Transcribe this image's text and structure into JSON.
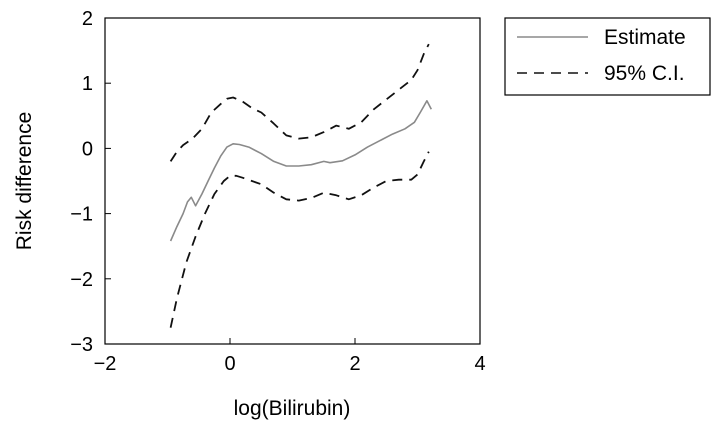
{
  "chart_data": {
    "type": "line",
    "xlabel": "log(Bilirubin)",
    "ylabel": "Risk difference",
    "xlim": [
      -2,
      4
    ],
    "ylim": [
      -3,
      2
    ],
    "xticks": [
      -2,
      0,
      2,
      4
    ],
    "yticks": [
      -3,
      -2,
      -1,
      0,
      1,
      2
    ],
    "xtick_labels": [
      "−2",
      "0",
      "2",
      "4"
    ],
    "ytick_labels": [
      "−3",
      "−2",
      "−1",
      "0",
      "1",
      "2"
    ],
    "grid": false,
    "legend_position": "outside-top-right",
    "series": [
      {
        "name": "Estimate",
        "style": "solid",
        "color": "#8a8a8a",
        "x": [
          -0.95,
          -0.85,
          -0.75,
          -0.68,
          -0.62,
          -0.55,
          -0.45,
          -0.35,
          -0.25,
          -0.15,
          -0.05,
          0.05,
          0.15,
          0.3,
          0.5,
          0.7,
          0.9,
          1.1,
          1.3,
          1.5,
          1.6,
          1.8,
          2.0,
          2.2,
          2.4,
          2.6,
          2.8,
          2.95,
          3.05,
          3.15,
          3.22
        ],
        "y": [
          -1.42,
          -1.2,
          -1.0,
          -0.82,
          -0.75,
          -0.88,
          -0.7,
          -0.5,
          -0.3,
          -0.12,
          0.02,
          0.07,
          0.06,
          0.02,
          -0.08,
          -0.2,
          -0.27,
          -0.27,
          -0.25,
          -0.2,
          -0.22,
          -0.19,
          -0.1,
          0.02,
          0.12,
          0.22,
          0.3,
          0.4,
          0.56,
          0.73,
          0.6
        ]
      },
      {
        "name": "95% C.I.",
        "style": "dashed",
        "color": "#111111",
        "x": [
          -0.95,
          -0.85,
          -0.75,
          -0.6,
          -0.45,
          -0.3,
          -0.15,
          -0.05,
          0.05,
          0.2,
          0.35,
          0.5,
          0.7,
          0.9,
          1.1,
          1.3,
          1.5,
          1.7,
          1.9,
          2.1,
          2.3,
          2.5,
          2.7,
          2.9,
          3.0,
          3.1,
          3.18
        ],
        "y": [
          -0.2,
          -0.05,
          0.05,
          0.15,
          0.3,
          0.55,
          0.68,
          0.76,
          0.78,
          0.72,
          0.62,
          0.55,
          0.38,
          0.2,
          0.15,
          0.17,
          0.25,
          0.35,
          0.3,
          0.4,
          0.6,
          0.75,
          0.9,
          1.05,
          1.2,
          1.45,
          1.6
        ]
      },
      {
        "name": "95% C.I.",
        "style": "dashed",
        "color": "#111111",
        "x": [
          -0.95,
          -0.85,
          -0.7,
          -0.55,
          -0.4,
          -0.25,
          -0.1,
          0.0,
          0.1,
          0.2,
          0.35,
          0.5,
          0.7,
          0.9,
          1.1,
          1.3,
          1.5,
          1.7,
          1.9,
          2.1,
          2.3,
          2.5,
          2.7,
          2.9,
          3.0,
          3.1,
          3.18
        ],
        "y": [
          -2.75,
          -2.3,
          -1.75,
          -1.35,
          -1.0,
          -0.7,
          -0.5,
          -0.42,
          -0.42,
          -0.45,
          -0.5,
          -0.55,
          -0.68,
          -0.78,
          -0.8,
          -0.76,
          -0.68,
          -0.72,
          -0.78,
          -0.72,
          -0.6,
          -0.5,
          -0.48,
          -0.48,
          -0.4,
          -0.2,
          -0.05
        ]
      }
    ],
    "legend": [
      {
        "label": "Estimate",
        "style": "solid",
        "color": "#8a8a8a"
      },
      {
        "label": "95% C.I.",
        "style": "dashed",
        "color": "#111111"
      }
    ]
  }
}
